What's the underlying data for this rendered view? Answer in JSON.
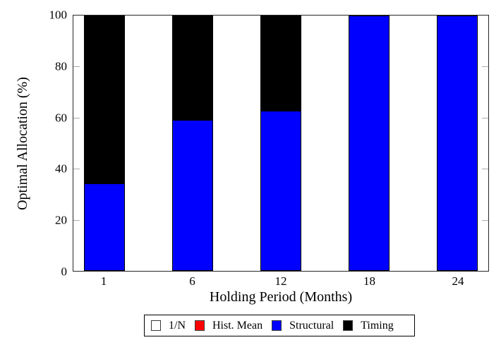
{
  "figure": {
    "background": "#ffffff"
  },
  "chart_data": {
    "type": "stacked-bar",
    "title": "",
    "xlabel": "Holding Period (Months)",
    "ylabel": "Optimal Allocation (%)",
    "categories": [
      "1",
      "6",
      "12",
      "18",
      "24"
    ],
    "series": [
      {
        "name": "1/N",
        "color": "#ffffff",
        "values": [
          0,
          0,
          0,
          0,
          0
        ]
      },
      {
        "name": "Hist. Mean",
        "color": "#ff0000",
        "values": [
          0,
          0,
          0,
          0,
          0
        ]
      },
      {
        "name": "Structural",
        "color": "#0000ff",
        "values": [
          34,
          59,
          62.5,
          100,
          100
        ]
      },
      {
        "name": "Timing",
        "color": "#000000",
        "values": [
          66,
          41,
          37.5,
          0,
          0
        ]
      }
    ],
    "ylim": [
      0,
      100
    ],
    "yticks": [
      0,
      20,
      40,
      60,
      80,
      100
    ],
    "grid": false,
    "legend_position": "bottom",
    "bar_edge_color": "#000000",
    "tick_direction": "in"
  }
}
